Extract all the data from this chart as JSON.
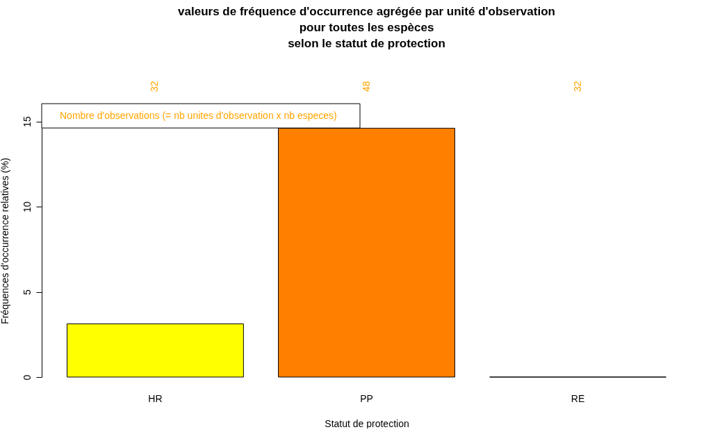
{
  "chart_data": {
    "type": "bar",
    "title": "valeurs de fréquence d'occurrence agrégée par unité d'observation\npour toutes les espèces\nselon le statut de protection",
    "xlabel": "Statut de protection",
    "ylabel": "Fréquences d'occurrence relatives (%)",
    "categories": [
      "HR",
      "PP",
      "RE"
    ],
    "values": [
      3.12,
      14.6,
      0
    ],
    "colors": [
      "#ffff00",
      "#ff7f00",
      "#ff0000"
    ],
    "ylim": [
      0,
      16
    ],
    "yticks": [
      0,
      5,
      10,
      15
    ],
    "grid": false,
    "annotations": [
      "Nombre d'observations (= nb unites d'observation x nb especes)",
      "32",
      "48",
      "32"
    ]
  }
}
